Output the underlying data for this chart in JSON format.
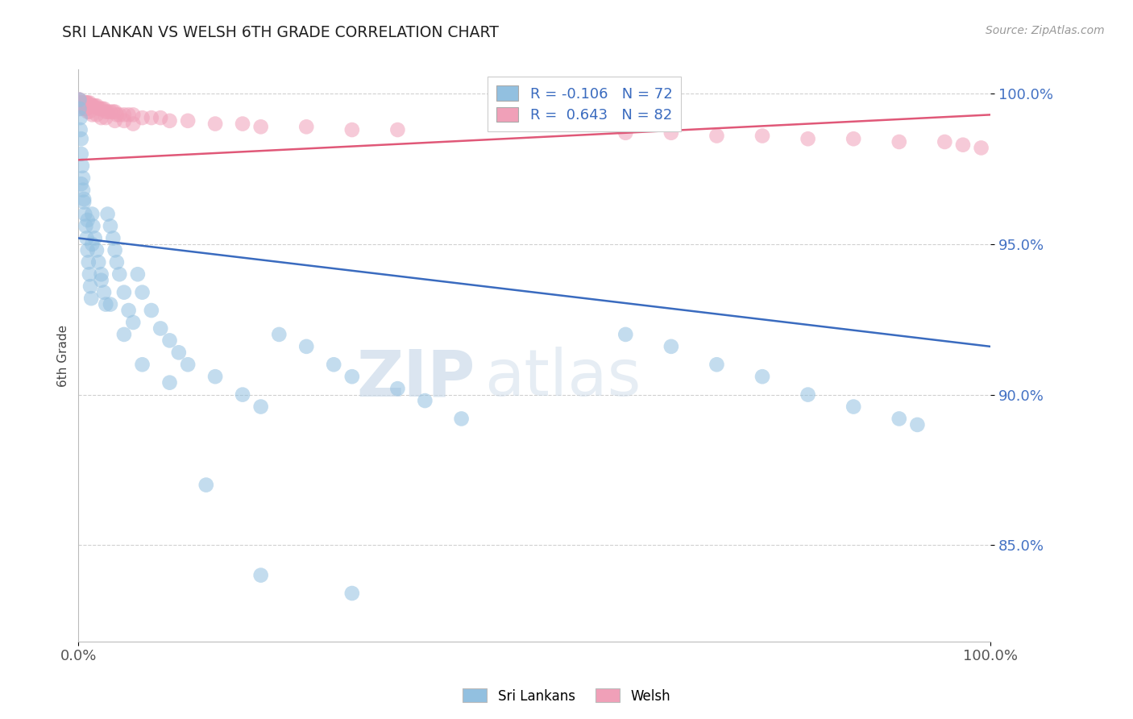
{
  "title": "SRI LANKAN VS WELSH 6TH GRADE CORRELATION CHART",
  "source_text": "Source: ZipAtlas.com",
  "ylabel": "6th Grade",
  "legend_labels": [
    "Sri Lankans",
    "Welsh"
  ],
  "r_sri": -0.106,
  "n_sri": 72,
  "r_welsh": 0.643,
  "n_welsh": 82,
  "blue_color": "#92c0e0",
  "pink_color": "#f0a0b8",
  "blue_line_color": "#3a6bbf",
  "pink_line_color": "#e05878",
  "watermark_zip": "ZIP",
  "watermark_atlas": "atlas",
  "xlim": [
    0.0,
    1.0
  ],
  "ylim": [
    0.818,
    1.008
  ],
  "yticks": [
    0.85,
    0.9,
    0.95,
    1.0
  ],
  "ytick_labels": [
    "85.0%",
    "90.0%",
    "95.0%",
    "100.0%"
  ],
  "xtick_labels": [
    "0.0%",
    "100.0%"
  ],
  "xticks": [
    0.0,
    1.0
  ],
  "blue_line_x0": 0.0,
  "blue_line_y0": 0.952,
  "blue_line_x1": 1.0,
  "blue_line_y1": 0.916,
  "pink_line_x0": 0.0,
  "pink_line_y0": 0.978,
  "pink_line_x1": 1.0,
  "pink_line_y1": 0.993,
  "sri_x": [
    0.001,
    0.001,
    0.002,
    0.002,
    0.003,
    0.003,
    0.004,
    0.005,
    0.005,
    0.006,
    0.007,
    0.008,
    0.009,
    0.01,
    0.011,
    0.012,
    0.013,
    0.014,
    0.015,
    0.016,
    0.018,
    0.02,
    0.022,
    0.025,
    0.028,
    0.03,
    0.032,
    0.035,
    0.038,
    0.04,
    0.042,
    0.045,
    0.05,
    0.055,
    0.06,
    0.065,
    0.07,
    0.08,
    0.09,
    0.1,
    0.11,
    0.12,
    0.15,
    0.18,
    0.2,
    0.22,
    0.25,
    0.28,
    0.3,
    0.35,
    0.38,
    0.42,
    0.6,
    0.65,
    0.7,
    0.75,
    0.8,
    0.85,
    0.9,
    0.92,
    0.003,
    0.006,
    0.01,
    0.015,
    0.025,
    0.035,
    0.05,
    0.07,
    0.1,
    0.14,
    0.2,
    0.3
  ],
  "sri_y": [
    0.998,
    0.995,
    0.992,
    0.988,
    0.985,
    0.98,
    0.976,
    0.972,
    0.968,
    0.964,
    0.96,
    0.956,
    0.952,
    0.948,
    0.944,
    0.94,
    0.936,
    0.932,
    0.96,
    0.956,
    0.952,
    0.948,
    0.944,
    0.938,
    0.934,
    0.93,
    0.96,
    0.956,
    0.952,
    0.948,
    0.944,
    0.94,
    0.934,
    0.928,
    0.924,
    0.94,
    0.934,
    0.928,
    0.922,
    0.918,
    0.914,
    0.91,
    0.906,
    0.9,
    0.896,
    0.92,
    0.916,
    0.91,
    0.906,
    0.902,
    0.898,
    0.892,
    0.92,
    0.916,
    0.91,
    0.906,
    0.9,
    0.896,
    0.892,
    0.89,
    0.97,
    0.965,
    0.958,
    0.95,
    0.94,
    0.93,
    0.92,
    0.91,
    0.904,
    0.87,
    0.84,
    0.834
  ],
  "welsh_x": [
    0.001,
    0.001,
    0.001,
    0.002,
    0.002,
    0.002,
    0.003,
    0.003,
    0.004,
    0.004,
    0.005,
    0.005,
    0.006,
    0.006,
    0.007,
    0.007,
    0.008,
    0.008,
    0.009,
    0.01,
    0.01,
    0.011,
    0.012,
    0.013,
    0.014,
    0.015,
    0.016,
    0.018,
    0.02,
    0.022,
    0.024,
    0.026,
    0.028,
    0.03,
    0.032,
    0.035,
    0.038,
    0.04,
    0.042,
    0.045,
    0.05,
    0.055,
    0.06,
    0.07,
    0.08,
    0.09,
    0.1,
    0.12,
    0.15,
    0.18,
    0.2,
    0.25,
    0.3,
    0.35,
    0.6,
    0.65,
    0.7,
    0.75,
    0.8,
    0.85,
    0.9,
    0.95,
    0.97,
    0.99,
    0.001,
    0.002,
    0.003,
    0.004,
    0.005,
    0.006,
    0.007,
    0.008,
    0.009,
    0.01,
    0.012,
    0.015,
    0.02,
    0.025,
    0.03,
    0.04,
    0.05,
    0.06
  ],
  "welsh_y": [
    0.998,
    0.997,
    0.996,
    0.997,
    0.996,
    0.995,
    0.997,
    0.996,
    0.997,
    0.996,
    0.997,
    0.996,
    0.997,
    0.996,
    0.997,
    0.996,
    0.997,
    0.996,
    0.997,
    0.997,
    0.996,
    0.996,
    0.997,
    0.996,
    0.996,
    0.996,
    0.996,
    0.996,
    0.996,
    0.995,
    0.995,
    0.995,
    0.995,
    0.994,
    0.994,
    0.994,
    0.994,
    0.994,
    0.993,
    0.993,
    0.993,
    0.993,
    0.993,
    0.992,
    0.992,
    0.992,
    0.991,
    0.991,
    0.99,
    0.99,
    0.989,
    0.989,
    0.988,
    0.988,
    0.987,
    0.987,
    0.986,
    0.986,
    0.985,
    0.985,
    0.984,
    0.984,
    0.983,
    0.982,
    0.998,
    0.997,
    0.997,
    0.996,
    0.996,
    0.996,
    0.995,
    0.995,
    0.995,
    0.994,
    0.994,
    0.993,
    0.993,
    0.992,
    0.992,
    0.991,
    0.991,
    0.99
  ]
}
